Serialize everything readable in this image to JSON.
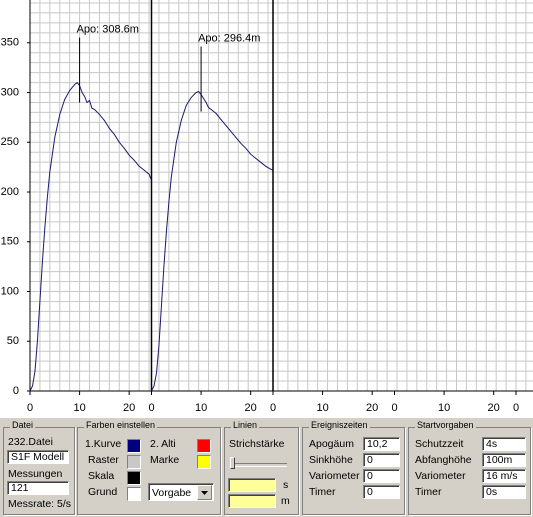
{
  "chart": {
    "type": "line",
    "ylim": [
      0,
      393
    ],
    "yticks": [
      0,
      50,
      100,
      150,
      200,
      250,
      300,
      350
    ],
    "panel_span": 24.5,
    "panel_xticks": [
      0,
      10,
      20
    ],
    "grid_step_x": 2,
    "grid_step_y": 10,
    "grid_color": "#c8c8c8",
    "curve_color": "#1a1a6e",
    "flights": [
      {
        "x": [
          0,
          0.5,
          1,
          1.5,
          2,
          2.5,
          3,
          3.5,
          4,
          5,
          6,
          7,
          8,
          9,
          9.5,
          10,
          10.5,
          11,
          11.5,
          12,
          12.5,
          13,
          14,
          15,
          16,
          17,
          18,
          19,
          20,
          21,
          22,
          23,
          24,
          24.4
        ],
        "values": [
          0,
          5,
          20,
          50,
          90,
          130,
          165,
          195,
          220,
          255,
          278,
          293,
          302,
          308,
          310,
          307,
          300,
          296,
          290,
          292,
          284,
          283,
          278,
          272,
          264,
          258,
          250,
          244,
          237,
          232,
          226,
          222,
          218,
          213
        ],
        "apogee_x": 10,
        "apogee_label": "Apo: 308.6m"
      },
      {
        "x": [
          0,
          0.5,
          1,
          1.5,
          2,
          2.5,
          3,
          3.5,
          4,
          5,
          6,
          7,
          8,
          9,
          9.5,
          10,
          10.5,
          11,
          11.5,
          12,
          13,
          14,
          15,
          16,
          17,
          18,
          19,
          20,
          21,
          22,
          23,
          24,
          24.4
        ],
        "values": [
          0,
          5,
          18,
          45,
          85,
          125,
          160,
          190,
          215,
          250,
          272,
          287,
          295,
          300,
          301,
          298,
          294,
          290,
          285,
          283,
          279,
          273,
          267,
          261,
          255,
          249,
          244,
          238,
          234,
          230,
          226,
          223,
          222
        ],
        "apogee_x": 10,
        "apogee_label": "Apo: 296.4m"
      }
    ]
  },
  "controls": {
    "datei": {
      "title": "Datei",
      "file": "232.Datei",
      "model": "S1F Modell",
      "count_label": "Messungen",
      "count": "121",
      "rate": "Messrate: 5/s"
    },
    "farben": {
      "title": "Farben einstellen",
      "items": [
        {
          "label": "1.Kurve",
          "color": "#000080"
        },
        {
          "label": "2. Alti",
          "color": "#ff0000"
        },
        {
          "label": "Raster",
          "color": "#c8c8c8"
        },
        {
          "label": "Marke",
          "color": "#ffff00"
        },
        {
          "label": "Skala",
          "color": "#000000"
        },
        {
          "label": "Grund",
          "color": "#ffffff"
        }
      ],
      "preset": "Vorgabe"
    },
    "linien": {
      "title": "Linien",
      "width_label": "Strichstärke",
      "unit_s": "s",
      "unit_m": "m"
    },
    "ereignis": {
      "title": "Ereigniszeiten",
      "rows": [
        [
          "Apogäum",
          "10,2"
        ],
        [
          "Sinkhöhe",
          "0"
        ],
        [
          "Variometer",
          "0"
        ],
        [
          "Timer",
          "0"
        ]
      ]
    },
    "start": {
      "title": "Startvorgaben",
      "rows": [
        [
          "Schutzzeit",
          "4s"
        ],
        [
          "Abfanghöhe",
          "100m"
        ],
        [
          "Variometer",
          "16 m/s"
        ],
        [
          "Timer",
          "0s"
        ]
      ]
    }
  }
}
